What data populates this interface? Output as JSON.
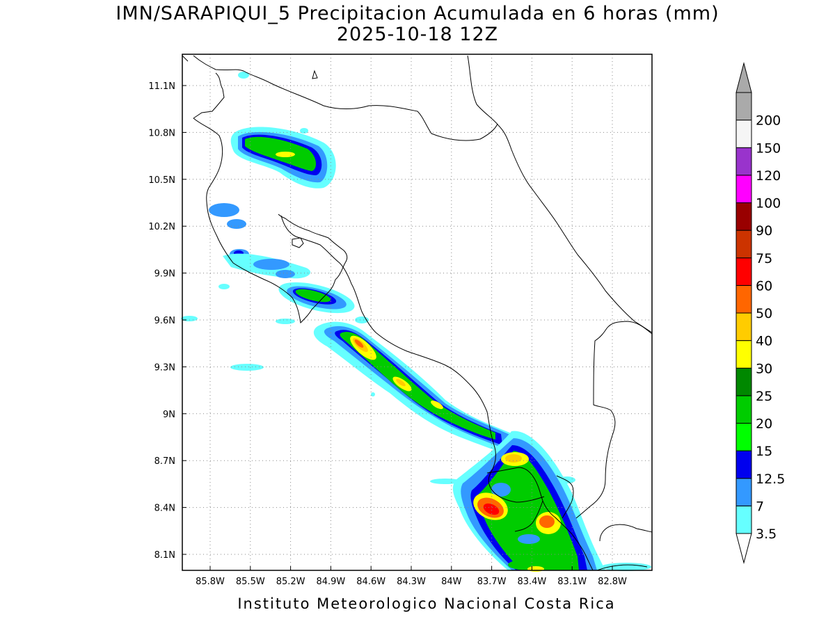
{
  "title": "IMN/SARAPIQUI_5 Precipitacion Acumulada en 6 horas (mm)",
  "subtitle": "2025-10-18 12Z",
  "footer": "Instituto Meteorologico Nacional Costa Rica",
  "map": {
    "lon_range": [
      -86.05,
      -82.5
    ],
    "lat_range": [
      8.0,
      11.3
    ],
    "lon_ticks": [
      "85.8W",
      "85.5W",
      "85.2W",
      "84.9W",
      "84.6W",
      "84.3W",
      "84W",
      "83.7W",
      "83.4W",
      "83.1W",
      "82.8W"
    ],
    "lat_ticks": [
      "11.1N",
      "10.8N",
      "10.5N",
      "10.2N",
      "9.9N",
      "9.6N",
      "9.3N",
      "9N",
      "8.7N",
      "8.4N",
      "8.1N"
    ],
    "grid": "dotted"
  },
  "colorbar": {
    "levels": [
      "3.5",
      "7",
      "12.5",
      "15",
      "20",
      "25",
      "30",
      "40",
      "50",
      "60",
      "75",
      "90",
      "100",
      "120",
      "150",
      "200"
    ],
    "colors": [
      "#66ffff",
      "#3399ff",
      "#0000ee",
      "#00ff00",
      "#00cc00",
      "#008800",
      "#ffff00",
      "#ffcc00",
      "#ff6600",
      "#ff0000",
      "#cc3300",
      "#990000",
      "#ff00ff",
      "#9933cc",
      "#f5f5f5",
      "#aaaaaa"
    ],
    "over_color": "#aaaaaa",
    "under_color": "#ffffff"
  }
}
